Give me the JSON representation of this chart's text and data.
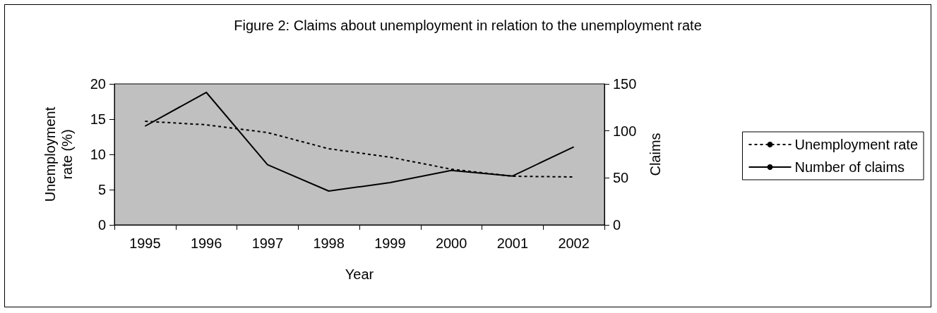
{
  "chart_data": {
    "type": "line",
    "title": "Figure 2: Claims about unemployment in relation to the unemployment rate",
    "xlabel": "Year",
    "ylabel": "Unemployment\nrate (%)",
    "y2label": "Claims",
    "categories": [
      "1995",
      "1996",
      "1997",
      "1998",
      "1999",
      "2000",
      "2001",
      "2002"
    ],
    "series": [
      {
        "name": "Unemployment rate",
        "color": "#000000",
        "line_style": "dashed",
        "values": [
          14.7,
          14.2,
          13.1,
          10.8,
          9.6,
          7.9,
          6.9,
          6.8
        ]
      },
      {
        "name": "Number of claims",
        "color": "#000000",
        "line_style": "solid",
        "axis": "y2",
        "values": [
          105,
          141,
          64,
          36,
          45,
          58,
          52,
          83
        ]
      }
    ],
    "ylim": [
      0,
      20
    ],
    "yticks": [
      0,
      5,
      10,
      15,
      20
    ],
    "y2lim": [
      0,
      150
    ],
    "y2ticks": [
      0,
      50,
      100,
      150
    ],
    "grid": false,
    "legend": "right",
    "marker": "none"
  }
}
